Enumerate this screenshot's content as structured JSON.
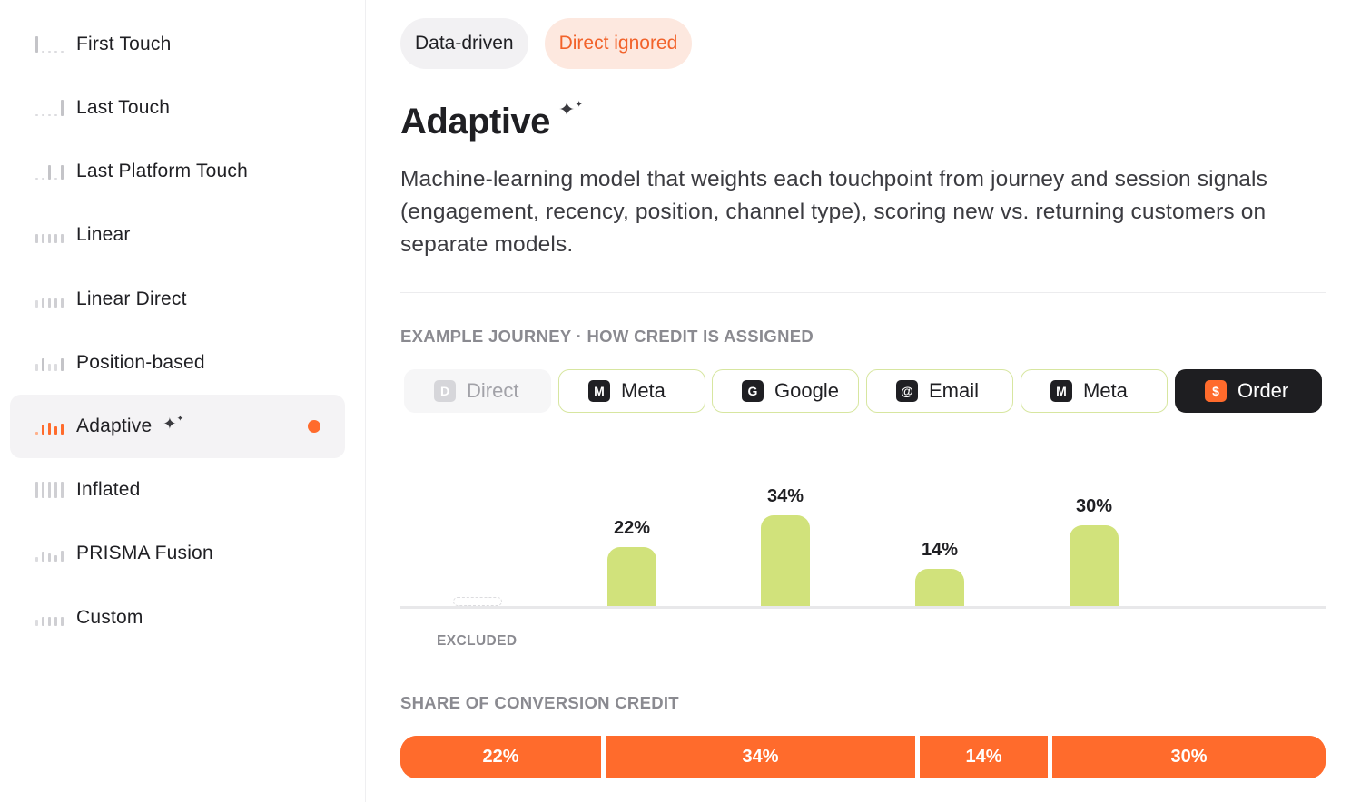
{
  "sidebar": {
    "items": [
      {
        "label": "First Touch",
        "icon": "bars-first-icon"
      },
      {
        "label": "Last Touch",
        "icon": "bars-last-icon"
      },
      {
        "label": "Last Platform Touch",
        "icon": "bars-last-platform-icon"
      },
      {
        "label": "Linear",
        "icon": "bars-linear-icon"
      },
      {
        "label": "Linear Direct",
        "icon": "bars-linear-direct-icon"
      },
      {
        "label": "Position-based",
        "icon": "bars-position-icon"
      },
      {
        "label": "Adaptive",
        "icon": "bars-adaptive-icon",
        "active": true
      },
      {
        "label": "Inflated",
        "icon": "bars-inflated-icon"
      },
      {
        "label": "PRISMA Fusion",
        "icon": "bars-fusion-icon"
      },
      {
        "label": "Custom",
        "icon": "bars-custom-icon"
      }
    ]
  },
  "header": {
    "tags": [
      {
        "label": "Data-driven"
      },
      {
        "label": "Direct ignored"
      }
    ],
    "title": "Adaptive",
    "description": "Machine-learning model that weights each touchpoint from journey and session signals (engagement, recency, position, channel type), scoring new vs. returning customers on separate models."
  },
  "journey": {
    "section_label": "EXAMPLE JOURNEY · HOW CREDIT IS ASSIGNED",
    "steps": [
      {
        "badge": "D",
        "label": "Direct"
      },
      {
        "badge": "M",
        "label": "Meta"
      },
      {
        "badge": "G",
        "label": "Google"
      },
      {
        "badge": "@",
        "label": "Email"
      },
      {
        "badge": "M",
        "label": "Meta"
      },
      {
        "badge": "$",
        "label": "Order"
      }
    ],
    "excluded_label": "EXCLUDED"
  },
  "chart_data": {
    "type": "bar",
    "categories": [
      "Direct",
      "Meta",
      "Google",
      "Email",
      "Meta"
    ],
    "values": [
      0,
      22,
      34,
      14,
      30
    ],
    "labels": [
      "",
      "22%",
      "34%",
      "14%",
      "30%"
    ],
    "excluded": [
      "Direct"
    ],
    "unit": "%",
    "title": "",
    "xlabel": "",
    "ylabel": ""
  },
  "share": {
    "section_label": "SHARE OF CONVERSION CREDIT",
    "segments": [
      {
        "label": "22%",
        "value": 22
      },
      {
        "label": "34%",
        "value": 34
      },
      {
        "label": "14%",
        "value": 14
      },
      {
        "label": "30%",
        "value": 30
      }
    ]
  },
  "colors": {
    "accent": "#ff6b2c",
    "bar": "#d1e27b",
    "chip_border": "#d7e6a0",
    "tag_warn_bg": "#fde8df",
    "tag_warn_text": "#f2622a"
  }
}
